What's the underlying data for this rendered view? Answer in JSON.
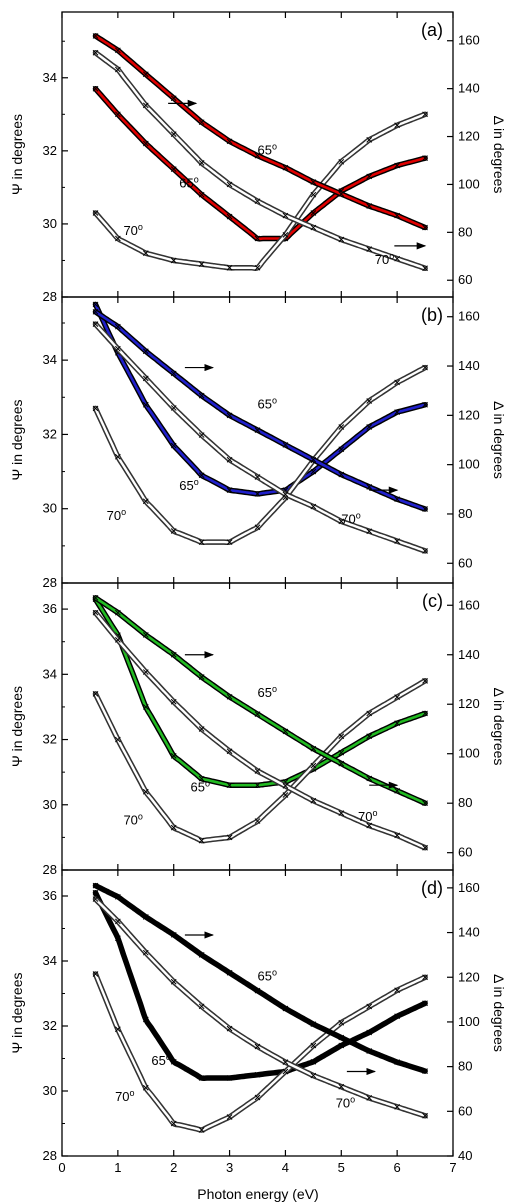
{
  "figure": {
    "xlabel": "Photon energy (eV)",
    "xlim": [
      0,
      7
    ],
    "xticks": [
      0,
      1,
      2,
      3,
      4,
      5,
      6,
      7
    ],
    "left_axis_label": "Ψ in degrees",
    "right_axis_label": "Δ in degrees"
  },
  "chart_data": [
    {
      "type": "scatter",
      "panel_label": "(a)",
      "fit_color": "#e00000",
      "ylim_psi": [
        28,
        35.8
      ],
      "psi_ticks": [
        28,
        30,
        32,
        34
      ],
      "ylim_delta": [
        53,
        172
      ],
      "delta_ticks": [
        60,
        80,
        100,
        120,
        140,
        160
      ],
      "x": [
        0.6,
        1.0,
        1.5,
        2.0,
        2.5,
        3.0,
        3.5,
        4.0,
        4.5,
        5.0,
        5.5,
        6.0,
        6.5
      ],
      "series": [
        {
          "angle": "65°",
          "quantity": "Ψ",
          "values": [
            33.7,
            33.0,
            32.2,
            31.5,
            30.8,
            30.2,
            29.6,
            29.6,
            30.3,
            30.9,
            31.3,
            31.6,
            31.8
          ]
        },
        {
          "angle": "70°",
          "quantity": "Ψ",
          "values": [
            30.3,
            29.6,
            29.2,
            29.0,
            28.9,
            28.8,
            28.8,
            29.7,
            30.8,
            31.7,
            32.3,
            32.7,
            33.0
          ]
        },
        {
          "angle": "65°",
          "quantity": "Δ",
          "values": [
            162,
            156,
            146,
            136,
            126,
            118,
            112,
            107,
            101,
            96,
            91,
            87,
            82
          ]
        },
        {
          "angle": "70°",
          "quantity": "Δ",
          "values": [
            155,
            148,
            133,
            121,
            109,
            100,
            93,
            87,
            82,
            77,
            73,
            69,
            65
          ]
        }
      ],
      "annotations": [
        {
          "text": "65",
          "sup": "o",
          "x": 3.5,
          "y": 31.9,
          "axis": "psi"
        },
        {
          "text": "65",
          "sup": "o",
          "x": 2.1,
          "y": 31.0,
          "axis": "psi"
        },
        {
          "text": "70",
          "sup": "o",
          "x": 1.1,
          "y": 29.7,
          "axis": "psi"
        },
        {
          "text": "70",
          "sup": "o",
          "x": 5.6,
          "y": 28.9,
          "axis": "psi"
        }
      ],
      "arrows": [
        {
          "x1": 1.9,
          "x2": 2.4,
          "y": 33.3,
          "axis": "psi"
        },
        {
          "x1": 5.95,
          "x2": 6.5,
          "y": 29.4,
          "axis": "psi"
        }
      ]
    },
    {
      "type": "scatter",
      "panel_label": "(b)",
      "fit_color": "#2020cc",
      "ylim_psi": [
        28,
        35.7
      ],
      "psi_ticks": [
        28,
        30,
        32,
        34
      ],
      "ylim_delta": [
        52,
        168
      ],
      "delta_ticks": [
        60,
        80,
        100,
        120,
        140,
        160
      ],
      "x": [
        0.6,
        1.0,
        1.5,
        2.0,
        2.5,
        3.0,
        3.5,
        4.0,
        4.5,
        5.0,
        5.5,
        6.0,
        6.5
      ],
      "series": [
        {
          "angle": "65°",
          "quantity": "Ψ",
          "values": [
            35.5,
            34.2,
            32.8,
            31.7,
            30.9,
            30.5,
            30.4,
            30.5,
            31.0,
            31.6,
            32.2,
            32.6,
            32.8
          ]
        },
        {
          "angle": "70°",
          "quantity": "Ψ",
          "values": [
            32.7,
            31.4,
            30.2,
            29.4,
            29.1,
            29.1,
            29.5,
            30.3,
            31.3,
            32.2,
            32.9,
            33.4,
            33.8
          ]
        },
        {
          "angle": "65°",
          "quantity": "Δ",
          "values": [
            162,
            156,
            146,
            137,
            128,
            120,
            114,
            108,
            102,
            96,
            91,
            86,
            82
          ]
        },
        {
          "angle": "70°",
          "quantity": "Δ",
          "values": [
            157,
            147,
            135,
            123,
            112,
            102,
            95,
            88,
            83,
            77,
            73,
            69,
            65
          ]
        }
      ],
      "annotations": [
        {
          "text": "65",
          "sup": "o",
          "x": 3.5,
          "y": 32.7,
          "axis": "psi"
        },
        {
          "text": "65",
          "sup": "o",
          "x": 2.1,
          "y": 30.5,
          "axis": "psi"
        },
        {
          "text": "70",
          "sup": "o",
          "x": 0.8,
          "y": 29.7,
          "axis": "psi"
        },
        {
          "text": "70",
          "sup": "o",
          "x": 5.0,
          "y": 29.6,
          "axis": "psi"
        }
      ],
      "arrows": [
        {
          "x1": 2.2,
          "x2": 2.7,
          "y": 33.8,
          "axis": "psi"
        },
        {
          "x1": 5.5,
          "x2": 6.0,
          "y": 30.5,
          "axis": "psi"
        }
      ]
    },
    {
      "type": "scatter",
      "panel_label": "(c)",
      "fit_color": "#22bb22",
      "ylim_psi": [
        28,
        36.8
      ],
      "psi_ticks": [
        28,
        30,
        32,
        34,
        36
      ],
      "ylim_delta": [
        53,
        169
      ],
      "delta_ticks": [
        60,
        80,
        100,
        120,
        140,
        160
      ],
      "x": [
        0.6,
        1.0,
        1.5,
        2.0,
        2.5,
        3.0,
        3.5,
        4.0,
        4.5,
        5.0,
        5.5,
        6.0,
        6.5
      ],
      "series": [
        {
          "angle": "65°",
          "quantity": "Ψ",
          "values": [
            36.3,
            35.2,
            33.0,
            31.5,
            30.8,
            30.6,
            30.6,
            30.7,
            31.1,
            31.6,
            32.1,
            32.5,
            32.8
          ]
        },
        {
          "angle": "70°",
          "quantity": "Ψ",
          "values": [
            33.4,
            32.0,
            30.4,
            29.3,
            28.9,
            29.0,
            29.5,
            30.3,
            31.2,
            32.1,
            32.8,
            33.3,
            33.8
          ]
        },
        {
          "angle": "65°",
          "quantity": "Δ",
          "values": [
            163,
            157,
            148,
            140,
            131,
            123,
            116,
            109,
            102,
            96,
            90,
            85,
            80
          ]
        },
        {
          "angle": "70°",
          "quantity": "Δ",
          "values": [
            157,
            146,
            133,
            121,
            110,
            101,
            93,
            87,
            81,
            76,
            71,
            67,
            62
          ]
        }
      ],
      "annotations": [
        {
          "text": "65",
          "sup": "o",
          "x": 3.5,
          "y": 33.3,
          "axis": "psi"
        },
        {
          "text": "65",
          "sup": "o",
          "x": 2.3,
          "y": 30.4,
          "axis": "psi"
        },
        {
          "text": "70",
          "sup": "o",
          "x": 1.1,
          "y": 29.4,
          "axis": "psi"
        },
        {
          "text": "70",
          "sup": "o",
          "x": 5.3,
          "y": 29.5,
          "axis": "psi"
        }
      ],
      "arrows": [
        {
          "x1": 2.2,
          "x2": 2.7,
          "y": 34.6,
          "axis": "psi"
        },
        {
          "x1": 5.5,
          "x2": 6.0,
          "y": 30.6,
          "axis": "psi"
        }
      ]
    },
    {
      "type": "scatter",
      "panel_label": "(d)",
      "fit_color": "#000000",
      "ylim_psi": [
        28,
        36.8
      ],
      "psi_ticks": [
        28,
        30,
        32,
        34,
        36
      ],
      "ylim_delta": [
        40,
        168
      ],
      "delta_ticks": [
        40,
        60,
        80,
        100,
        120,
        140,
        160
      ],
      "x": [
        0.6,
        1.0,
        1.5,
        2.0,
        2.5,
        3.0,
        3.5,
        4.0,
        4.5,
        5.0,
        5.5,
        6.0,
        6.5
      ],
      "series": [
        {
          "angle": "65°",
          "quantity": "Ψ",
          "values": [
            36.1,
            34.7,
            32.2,
            30.9,
            30.4,
            30.4,
            30.5,
            30.6,
            30.9,
            31.4,
            31.8,
            32.3,
            32.7
          ]
        },
        {
          "angle": "70°",
          "quantity": "Ψ",
          "values": [
            33.6,
            31.9,
            30.1,
            29.0,
            28.8,
            29.2,
            29.8,
            30.6,
            31.4,
            32.1,
            32.6,
            33.1,
            33.5
          ]
        },
        {
          "angle": "65°",
          "quantity": "Δ",
          "values": [
            161,
            156,
            147,
            139,
            130,
            122,
            114,
            106,
            99,
            93,
            87,
            82,
            78
          ]
        },
        {
          "angle": "70°",
          "quantity": "Δ",
          "values": [
            155,
            145,
            131,
            118,
            107,
            97,
            89,
            82,
            76,
            71,
            66,
            62,
            58
          ]
        }
      ],
      "annotations": [
        {
          "text": "65",
          "sup": "o",
          "x": 3.5,
          "y": 33.4,
          "axis": "psi"
        },
        {
          "text": "65",
          "sup": "o",
          "x": 1.6,
          "y": 30.8,
          "axis": "psi"
        },
        {
          "text": "70",
          "sup": "o",
          "x": 0.95,
          "y": 29.7,
          "axis": "psi"
        },
        {
          "text": "70",
          "sup": "o",
          "x": 4.9,
          "y": 29.5,
          "axis": "psi"
        }
      ],
      "arrows": [
        {
          "x1": 2.2,
          "x2": 2.7,
          "y": 34.8,
          "axis": "psi"
        },
        {
          "x1": 5.1,
          "x2": 5.6,
          "y": 30.6,
          "axis": "psi"
        }
      ]
    }
  ]
}
